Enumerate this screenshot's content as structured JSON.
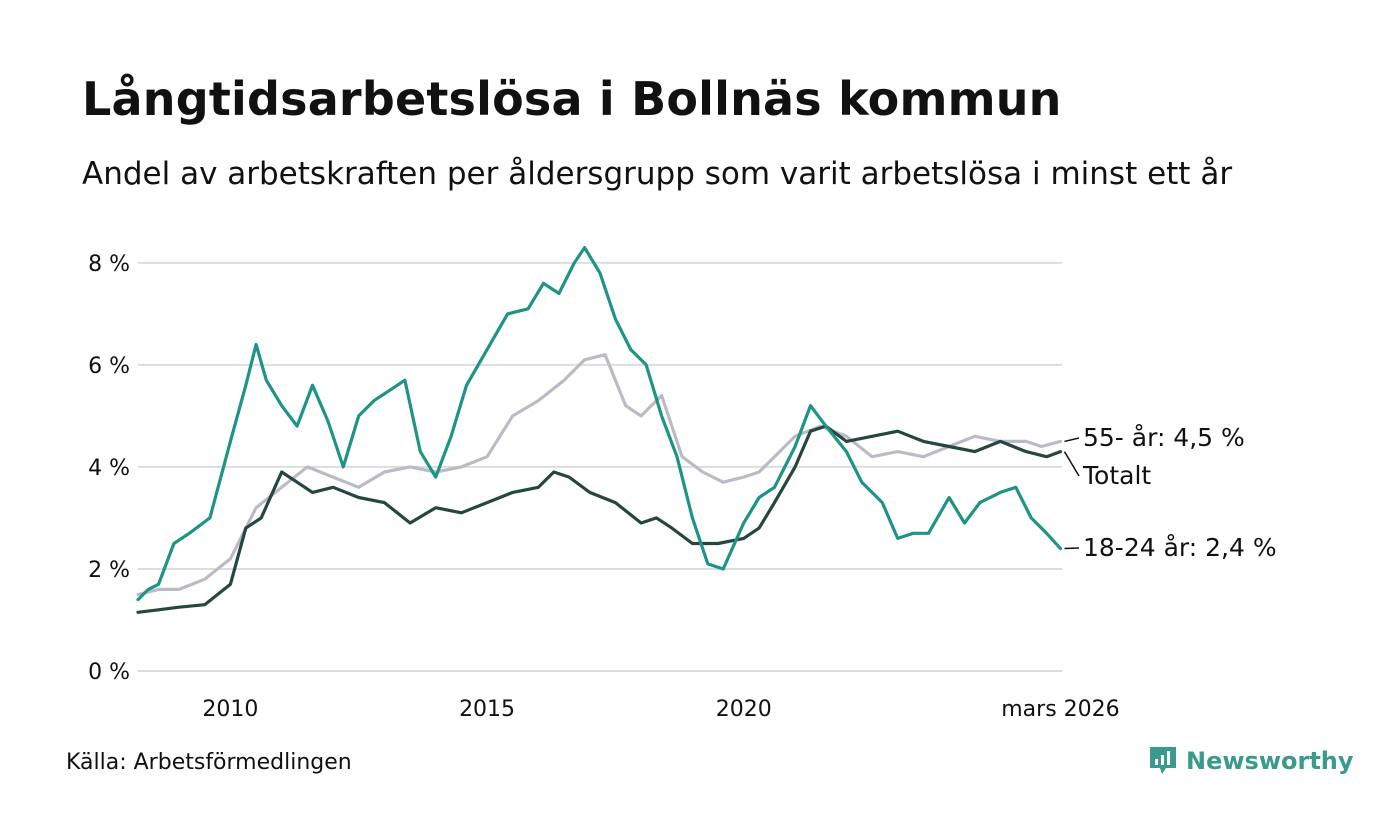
{
  "title": "Långtidsarbetslösa i Bollnäs kommun",
  "subtitle": "Andel av arbetskraften per åldersgrupp som varit arbetslösa i minst ett år",
  "source": "Källa: Arbetsförmedlingen",
  "logo": "Newsworthy",
  "colors": {
    "young": "#1e9484",
    "total": "#24473f",
    "older": "#bdbac8",
    "grid": "#dddddd",
    "logo": "#3a9a8c"
  },
  "chart_data": {
    "type": "line",
    "title": "Långtidsarbetslösa i Bollnäs kommun",
    "ylim": [
      0,
      8.6
    ],
    "xlim": [
      2008.2,
      2026.2
    ],
    "yticks": [
      0,
      2,
      4,
      6,
      8
    ],
    "ytick_labels": [
      "0 %",
      "2 %",
      "4 %",
      "6 %",
      "8 %"
    ],
    "xticks": [
      2010,
      2015,
      2020,
      2026.17
    ],
    "xtick_labels": [
      "2010",
      "2015",
      "2020",
      "mars 2026"
    ],
    "grid": true,
    "series": [
      {
        "name": "55- år",
        "end_label": "55- år: 4,5 %",
        "x": [
          2008.2,
          2008.6,
          2009.0,
          2009.5,
          2010.0,
          2010.5,
          2011.0,
          2011.5,
          2012.0,
          2012.5,
          2013.0,
          2013.5,
          2014.0,
          2014.5,
          2015.0,
          2015.5,
          2016.0,
          2016.5,
          2016.9,
          2017.3,
          2017.7,
          2018.0,
          2018.4,
          2018.8,
          2019.2,
          2019.6,
          2020.0,
          2020.3,
          2020.7,
          2021.0,
          2021.5,
          2022.0,
          2022.5,
          2023.0,
          2023.5,
          2024.0,
          2024.5,
          2025.0,
          2025.5,
          2025.8,
          2026.17
        ],
        "values": [
          1.5,
          1.6,
          1.6,
          1.8,
          2.2,
          3.2,
          3.6,
          4.0,
          3.8,
          3.6,
          3.9,
          4.0,
          3.9,
          4.0,
          4.2,
          5.0,
          5.3,
          5.7,
          6.1,
          6.2,
          5.2,
          5.0,
          5.4,
          4.2,
          3.9,
          3.7,
          3.8,
          3.9,
          4.3,
          4.6,
          4.8,
          4.6,
          4.2,
          4.3,
          4.2,
          4.4,
          4.6,
          4.5,
          4.5,
          4.4,
          4.5
        ]
      },
      {
        "name": "Totalt",
        "end_label": "Totalt",
        "x": [
          2008.2,
          2008.6,
          2009.0,
          2009.5,
          2010.0,
          2010.3,
          2010.6,
          2011.0,
          2011.3,
          2011.6,
          2012.0,
          2012.5,
          2013.0,
          2013.5,
          2014.0,
          2014.5,
          2015.0,
          2015.5,
          2016.0,
          2016.3,
          2016.6,
          2017.0,
          2017.5,
          2018.0,
          2018.3,
          2018.6,
          2019.0,
          2019.5,
          2020.0,
          2020.3,
          2020.6,
          2021.0,
          2021.3,
          2021.6,
          2022.0,
          2022.5,
          2023.0,
          2023.5,
          2024.0,
          2024.5,
          2025.0,
          2025.5,
          2025.9,
          2026.17
        ],
        "values": [
          1.15,
          1.2,
          1.25,
          1.3,
          1.7,
          2.8,
          3.0,
          3.9,
          3.7,
          3.5,
          3.6,
          3.4,
          3.3,
          2.9,
          3.2,
          3.1,
          3.3,
          3.5,
          3.6,
          3.9,
          3.8,
          3.5,
          3.3,
          2.9,
          3.0,
          2.8,
          2.5,
          2.5,
          2.6,
          2.8,
          3.3,
          4.0,
          4.7,
          4.8,
          4.5,
          4.6,
          4.7,
          4.5,
          4.4,
          4.3,
          4.5,
          4.3,
          4.2,
          4.3
        ]
      },
      {
        "name": "18-24 år",
        "end_label": "18-24 år: 2,4 %",
        "x": [
          2008.2,
          2008.4,
          2008.6,
          2008.9,
          2009.2,
          2009.6,
          2010.0,
          2010.3,
          2010.5,
          2010.7,
          2011.0,
          2011.3,
          2011.6,
          2011.9,
          2012.2,
          2012.5,
          2012.8,
          2013.1,
          2013.4,
          2013.7,
          2014.0,
          2014.3,
          2014.6,
          2015.0,
          2015.4,
          2015.8,
          2016.1,
          2016.4,
          2016.7,
          2016.9,
          2017.2,
          2017.5,
          2017.8,
          2018.1,
          2018.4,
          2018.7,
          2019.0,
          2019.3,
          2019.6,
          2020.0,
          2020.3,
          2020.6,
          2021.0,
          2021.3,
          2021.6,
          2022.0,
          2022.3,
          2022.7,
          2023.0,
          2023.3,
          2023.6,
          2024.0,
          2024.3,
          2024.6,
          2025.0,
          2025.3,
          2025.6,
          2025.9,
          2026.17
        ],
        "values": [
          1.4,
          1.6,
          1.7,
          2.5,
          2.7,
          3.0,
          4.5,
          5.6,
          6.4,
          5.7,
          5.2,
          4.8,
          5.6,
          4.9,
          4.0,
          5.0,
          5.3,
          5.5,
          5.7,
          4.3,
          3.8,
          4.6,
          5.6,
          6.3,
          7.0,
          7.1,
          7.6,
          7.4,
          8.0,
          8.3,
          7.8,
          6.9,
          6.3,
          6.0,
          5.0,
          4.2,
          3.0,
          2.1,
          2.0,
          2.9,
          3.4,
          3.6,
          4.4,
          5.2,
          4.8,
          4.3,
          3.7,
          3.3,
          2.6,
          2.7,
          2.7,
          3.4,
          2.9,
          3.3,
          3.5,
          3.6,
          3.0,
          2.7,
          2.4
        ]
      }
    ]
  }
}
